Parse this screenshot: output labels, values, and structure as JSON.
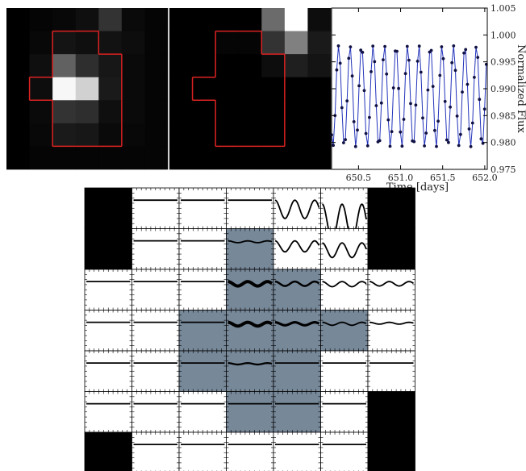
{
  "chart_data": [
    {
      "type": "heatmap",
      "panel": "target pixel file, single frame",
      "colormap": "gray",
      "grid": [
        [
          0.0,
          0.02,
          0.03,
          0.06,
          0.2,
          0.04,
          0.02
        ],
        [
          0.0,
          0.03,
          0.08,
          0.06,
          0.07,
          0.05,
          0.02
        ],
        [
          0.0,
          0.06,
          0.38,
          0.18,
          0.09,
          0.04,
          0.02
        ],
        [
          0.0,
          0.05,
          0.97,
          0.82,
          0.1,
          0.04,
          0.02
        ],
        [
          0.0,
          0.04,
          0.2,
          0.18,
          0.06,
          0.04,
          0.02
        ],
        [
          0.0,
          0.03,
          0.1,
          0.09,
          0.04,
          0.03,
          0.02
        ],
        [
          0.0,
          0.02,
          0.02,
          0.02,
          0.02,
          0.02,
          0.02
        ]
      ],
      "aperture_color": "#dd2222",
      "aperture_mask": [
        [
          0,
          0,
          0,
          0,
          0,
          0,
          0
        ],
        [
          0,
          0,
          1,
          1,
          0,
          0,
          0
        ],
        [
          0,
          0,
          1,
          1,
          1,
          0,
          0
        ],
        [
          0,
          1,
          1,
          1,
          1,
          0,
          0
        ],
        [
          0,
          0,
          1,
          1,
          1,
          0,
          0
        ],
        [
          0,
          0,
          1,
          1,
          1,
          0,
          0
        ],
        [
          0,
          0,
          0,
          0,
          0,
          0,
          0
        ]
      ]
    },
    {
      "type": "heatmap",
      "panel": "difference image",
      "colormap": "gray",
      "grid": [
        [
          0.0,
          0.0,
          0.0,
          0.0,
          0.42,
          1.0,
          0.05
        ],
        [
          0.0,
          0.0,
          0.02,
          0.02,
          0.2,
          0.5,
          0.1
        ],
        [
          0.0,
          0.0,
          0.0,
          0.0,
          0.05,
          0.12,
          0.08
        ],
        [
          0.0,
          0.0,
          0.0,
          0.0,
          0.0,
          0.0,
          0.0
        ],
        [
          0.0,
          0.0,
          0.0,
          0.0,
          0.0,
          0.0,
          0.0
        ],
        [
          0.0,
          0.0,
          0.0,
          0.0,
          0.0,
          0.0,
          0.0
        ],
        [
          0.0,
          0.0,
          0.0,
          0.0,
          0.0,
          0.0,
          0.0
        ]
      ],
      "aperture_color": "#dd2222",
      "aperture_mask": [
        [
          0,
          0,
          0,
          0,
          0,
          0,
          0
        ],
        [
          0,
          0,
          1,
          1,
          0,
          0,
          0
        ],
        [
          0,
          0,
          1,
          1,
          1,
          0,
          0
        ],
        [
          0,
          1,
          1,
          1,
          1,
          0,
          0
        ],
        [
          0,
          0,
          1,
          1,
          1,
          0,
          0
        ],
        [
          0,
          0,
          1,
          1,
          1,
          0,
          0
        ],
        [
          0,
          0,
          0,
          0,
          0,
          0,
          0
        ]
      ]
    },
    {
      "type": "line",
      "xlabel": "Time [days]",
      "ylabel": "Normalized Flux",
      "xlim": [
        650.18,
        652.03
      ],
      "ylim": [
        0.975,
        1.005
      ],
      "xticks": [
        "650.5",
        "651.0",
        "651.5",
        "652.0"
      ],
      "xtick_values": [
        650.5,
        651.0,
        651.5,
        652.0
      ],
      "yticks": [
        "0.975",
        "0.980",
        "0.985",
        "0.990",
        "0.995",
        "1.000",
        "1.005"
      ],
      "ytick_values": [
        0.975,
        0.98,
        0.985,
        0.99,
        0.995,
        1.0,
        1.005
      ],
      "line_color": "#2233bb",
      "marker_color": "#111144",
      "series": [
        {
          "period_days": 0.1365,
          "phase_zero_time": 650.127,
          "median": 0.9886,
          "amplitude": 0.0094,
          "cadence_days": 0.02043,
          "t_start": 650.18,
          "t_end": 652.02
        }
      ]
    },
    {
      "type": "heatmap",
      "panel": "per-pixel light curves",
      "columns": 7,
      "rows": 7,
      "cell_state": [
        [
          "black",
          "white",
          "white",
          "white",
          "white",
          "white",
          "black"
        ],
        [
          "black",
          "white",
          "white",
          "aperture",
          "white",
          "white",
          "black"
        ],
        [
          "white",
          "white",
          "white",
          "aperture",
          "aperture",
          "white",
          "white"
        ],
        [
          "white",
          "white",
          "aperture",
          "aperture",
          "aperture",
          "aperture",
          "white"
        ],
        [
          "white",
          "white",
          "aperture",
          "aperture",
          "aperture",
          "white",
          "white"
        ],
        [
          "white",
          "white",
          "white",
          "aperture",
          "aperture",
          "white",
          "black"
        ],
        [
          "black",
          "white",
          "white",
          "white",
          "white",
          "white",
          "black"
        ]
      ],
      "aperture_fill": "#778899",
      "curve_amplitude": [
        [
          0,
          0,
          0,
          0,
          0.5,
          1,
          0
        ],
        [
          0,
          0,
          0,
          0.05,
          0.3,
          0.4,
          0
        ],
        [
          0,
          0,
          0,
          0.12,
          0.12,
          0.14,
          0.12
        ],
        [
          0,
          0,
          0,
          0.1,
          0.08,
          0.08,
          0.05
        ],
        [
          0,
          0,
          0,
          0.04,
          0,
          0,
          0
        ],
        [
          0,
          0,
          0,
          0,
          0,
          0,
          0
        ],
        [
          0,
          0,
          0,
          0,
          0,
          0,
          0
        ]
      ],
      "curve_baseline": [
        [
          0.3,
          0.3,
          0.3,
          0.3,
          0.3,
          0.4,
          0.3
        ],
        [
          0.3,
          0.3,
          0.3,
          0.3,
          0.3,
          0.35,
          0.3
        ],
        [
          0.3,
          0.3,
          0.3,
          0.3,
          0.3,
          0.3,
          0.3
        ],
        [
          0.3,
          0.3,
          0.3,
          0.3,
          0.3,
          0.3,
          0.3
        ],
        [
          0.3,
          0.3,
          0.3,
          0.3,
          0.3,
          0.3,
          0.3
        ],
        [
          0.3,
          0.3,
          0.3,
          0.3,
          0.3,
          0.3,
          0.3
        ],
        [
          0.3,
          0.3,
          0.3,
          0.3,
          0.3,
          0.3,
          0.3
        ]
      ],
      "curve_noise": [
        [
          0,
          0,
          0,
          0,
          0,
          0,
          0
        ],
        [
          0,
          0,
          0,
          0,
          0,
          0,
          0
        ],
        [
          0,
          0,
          0,
          1,
          0.3,
          0,
          0
        ],
        [
          0,
          0,
          0,
          1,
          0.6,
          0,
          0
        ],
        [
          0,
          0,
          0,
          0.2,
          0,
          0,
          0
        ],
        [
          0,
          0,
          0,
          0,
          0,
          0,
          0
        ],
        [
          0,
          0,
          0,
          0,
          0,
          0,
          0
        ]
      ],
      "curve_period_cells": 0.45
    }
  ]
}
